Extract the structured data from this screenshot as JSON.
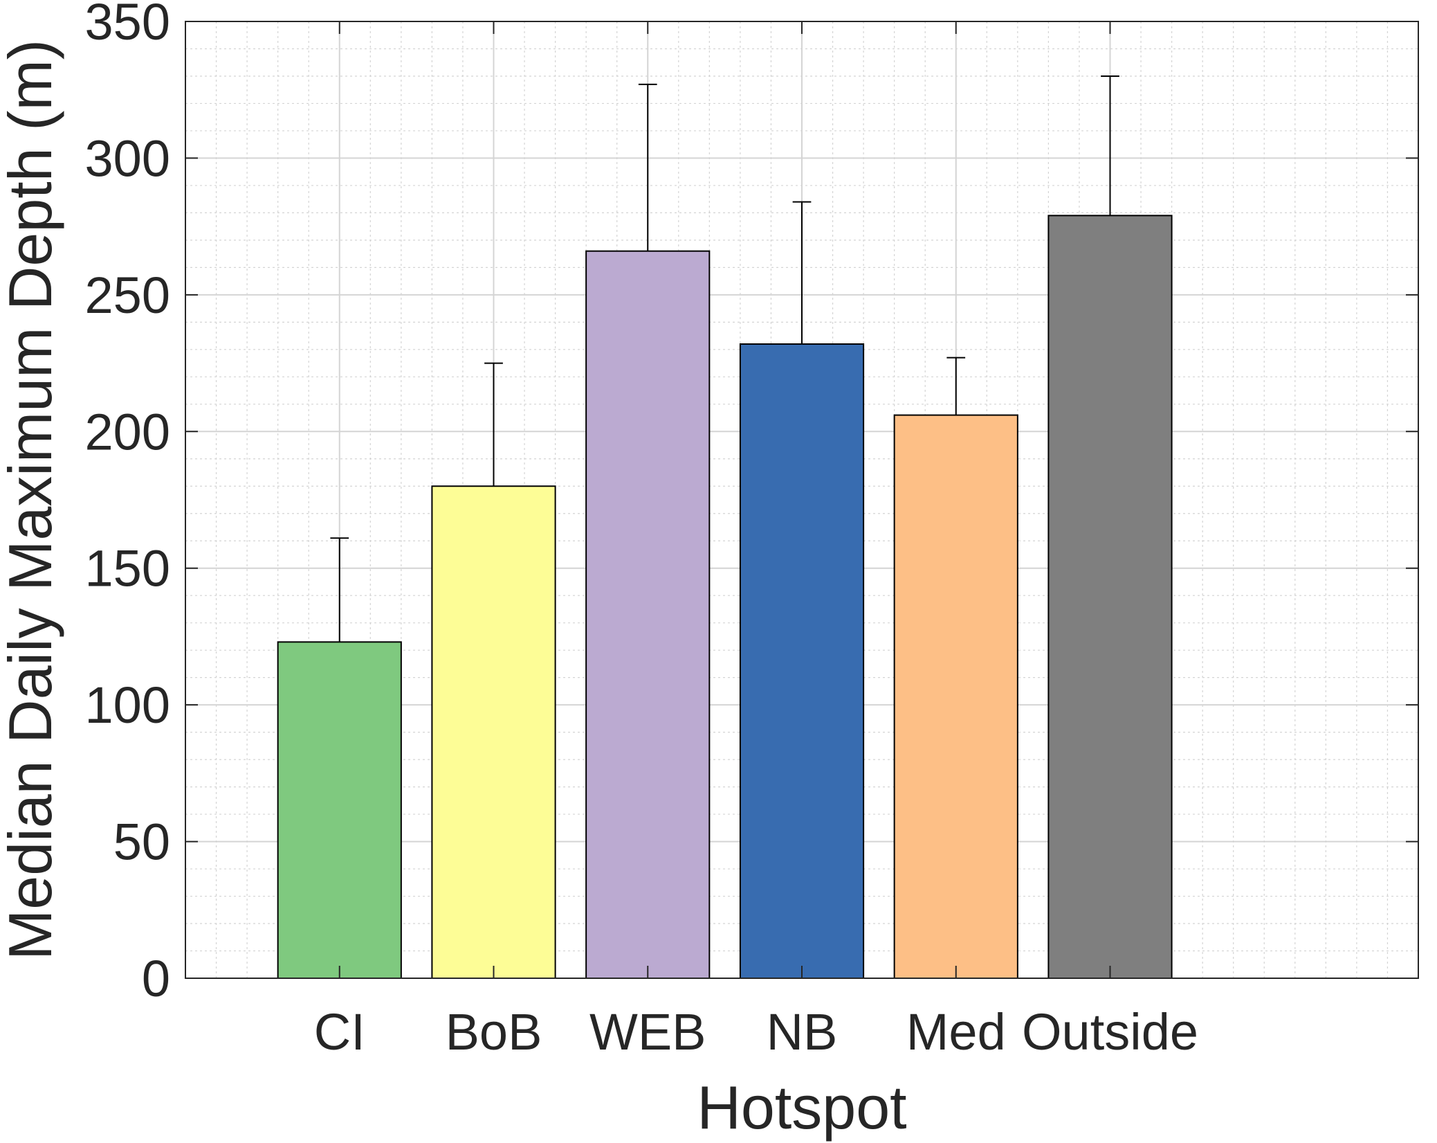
{
  "chart_data": {
    "type": "bar",
    "categories": [
      "CI",
      "BoB",
      "WEB",
      "NB",
      "Med",
      "Outside"
    ],
    "values": [
      123,
      180,
      266,
      232,
      206,
      279
    ],
    "error_upper": [
      161,
      225,
      327,
      284,
      227,
      330
    ],
    "colors": [
      "#7fc97f",
      "#fdfd96",
      "#bbaad1",
      "#386cb0",
      "#fdbf86",
      "#7f7f7f"
    ],
    "xlabel": "Hotspot",
    "ylabel": "Median Daily Maximum Depth (m)",
    "ylim": [
      0,
      350
    ],
    "yticks": [
      0,
      50,
      100,
      150,
      200,
      250,
      300,
      350
    ],
    "y_minor_step": 10,
    "x_minor_divisions": 40,
    "grid": true
  }
}
